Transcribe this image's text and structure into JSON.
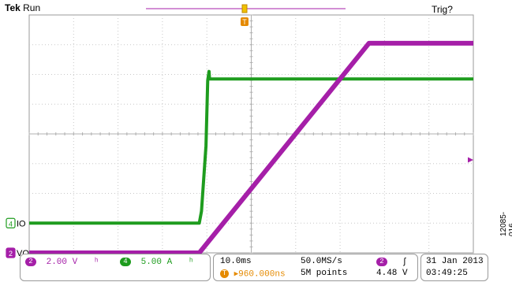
{
  "header": {
    "brand": "Tek",
    "status": "Run",
    "trigger_status": "Trig?"
  },
  "colors": {
    "green": "#1e9c1e",
    "purple": "#a51fa8",
    "orange": "#e58a00",
    "grid": "#c8c8c8"
  },
  "chart_data": {
    "type": "line",
    "title": "",
    "grid": true,
    "time_per_div_ms": 10.0,
    "time_range_ms": [
      0,
      100
    ],
    "series": [
      {
        "name": "IO",
        "channel": 4,
        "scale": "5.00 A",
        "color": "#1e9c1e",
        "points": [
          [
            0,
            -3.0
          ],
          [
            38.3,
            -3.0
          ],
          [
            38.8,
            -2.6
          ],
          [
            39.8,
            -0.4
          ],
          [
            40.2,
            1.8
          ],
          [
            40.5,
            2.1
          ],
          [
            40.6,
            1.85
          ],
          [
            100,
            1.85
          ]
        ]
      },
      {
        "name": "VO",
        "channel": 2,
        "scale": "2.00 V",
        "color": "#a51fa8",
        "points": [
          [
            0,
            -4.0
          ],
          [
            38.3,
            -4.0
          ],
          [
            76.5,
            3.05
          ],
          [
            100,
            3.05
          ]
        ]
      }
    ],
    "vertical_range_div": [
      -4,
      4
    ],
    "channel_labels": [
      {
        "channel": "4",
        "text": "IO",
        "level_div": -3.0
      },
      {
        "channel": "2",
        "text": "VO",
        "level_div": -4.0
      }
    ]
  },
  "footer": {
    "ch2": {
      "id": "2",
      "scale": "2.00 V",
      "bw": "ʰ"
    },
    "ch4": {
      "id": "4",
      "scale": "5.00 A",
      "bw": "ʰ"
    },
    "timebase": "10.0ms",
    "delay": "960.000ns",
    "delay_marker": "T",
    "sample_rate": "50.0MS/s",
    "record_length": "5M points",
    "trigger": {
      "source": "2",
      "slope": "ʃ",
      "level": "4.48 V"
    },
    "date": "31 Jan  2013",
    "time": "03:49:25"
  },
  "figure_id": "12085-016"
}
